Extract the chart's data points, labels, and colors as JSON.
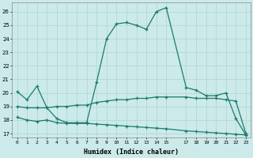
{
  "xlabel": "Humidex (Indice chaleur)",
  "line_top_x": [
    0,
    1,
    2,
    3,
    4,
    5,
    6,
    7,
    8,
    9,
    10,
    11,
    12,
    13,
    14,
    15,
    17,
    18,
    19,
    20,
    21,
    22,
    23
  ],
  "line_top_y": [
    20.1,
    19.5,
    20.5,
    18.9,
    18.1,
    17.8,
    17.8,
    17.8,
    20.8,
    24.0,
    25.1,
    25.2,
    25.0,
    24.7,
    26.0,
    26.3,
    20.4,
    20.2,
    19.8,
    19.8,
    20.0,
    18.1,
    16.9
  ],
  "line_mid_x": [
    0,
    1,
    2,
    3,
    4,
    5,
    6,
    7,
    8,
    9,
    10,
    11,
    12,
    13,
    14,
    15,
    17,
    18,
    19,
    20,
    21,
    22,
    23
  ],
  "line_mid_y": [
    19.0,
    18.9,
    18.9,
    18.9,
    19.0,
    19.0,
    19.1,
    19.1,
    19.3,
    19.4,
    19.5,
    19.5,
    19.6,
    19.6,
    19.7,
    19.7,
    19.7,
    19.6,
    19.6,
    19.6,
    19.5,
    19.4,
    17.0
  ],
  "line_bot_x": [
    0,
    1,
    2,
    3,
    4,
    5,
    6,
    7,
    8,
    9,
    10,
    11,
    12,
    13,
    14,
    15,
    17,
    18,
    19,
    20,
    21,
    22,
    23
  ],
  "line_bot_y": [
    18.2,
    18.0,
    17.9,
    18.0,
    17.8,
    17.75,
    17.75,
    17.75,
    17.7,
    17.65,
    17.6,
    17.55,
    17.5,
    17.45,
    17.4,
    17.35,
    17.2,
    17.15,
    17.1,
    17.05,
    17.0,
    16.95,
    16.9
  ],
  "xtick_positions": [
    0,
    1,
    2,
    3,
    4,
    5,
    6,
    7,
    8,
    9,
    10,
    11,
    12,
    13,
    14,
    15,
    17,
    18,
    19,
    20,
    21,
    22,
    23
  ],
  "xtick_labels": [
    "0",
    "1",
    "2",
    "3",
    "4",
    "5",
    "6",
    "7",
    "8",
    "9",
    "10",
    "11",
    "12",
    "13",
    "14",
    "15",
    "17",
    "18",
    "19",
    "20",
    "21",
    "22",
    "23"
  ],
  "ytick_positions": [
    17,
    18,
    19,
    20,
    21,
    22,
    23,
    24,
    25,
    26
  ],
  "ytick_labels": [
    "17",
    "18",
    "19",
    "20",
    "21",
    "22",
    "23",
    "24",
    "25",
    "26"
  ],
  "ylim": [
    16.7,
    26.7
  ],
  "xlim": [
    -0.5,
    23.5
  ],
  "line_color": "#1a7a6e",
  "bg_color": "#cceaea",
  "grid_color": "#b0d4d4",
  "marker": "+"
}
